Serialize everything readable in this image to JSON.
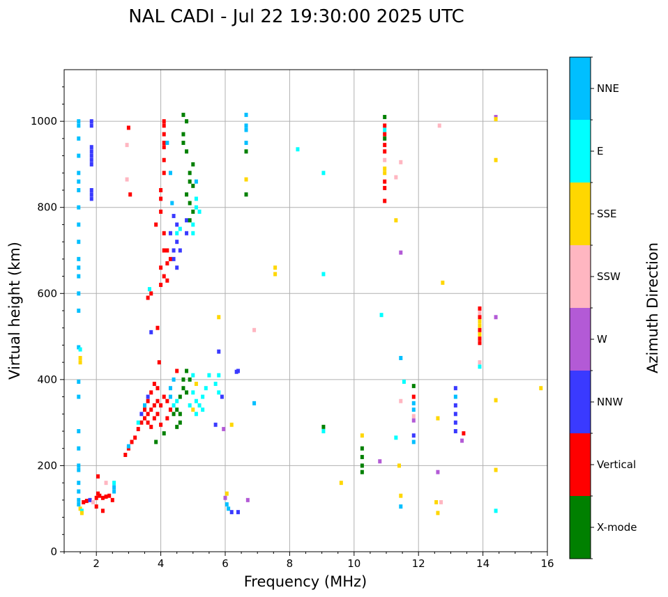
{
  "chart_data": {
    "type": "scatter",
    "title": "NAL CADI - Jul 22 19:30:00 2025 UTC",
    "xlabel": "Frequency (MHz)",
    "ylabel": "Virtual height (km)",
    "xlim": [
      1,
      16
    ],
    "ylim": [
      0,
      1120
    ],
    "xticks": [
      2,
      4,
      6,
      8,
      10,
      12,
      14,
      16
    ],
    "yticks": [
      0,
      200,
      400,
      600,
      800,
      1000
    ],
    "grid": true,
    "colorbar": {
      "label": "Azimuth Direction",
      "categories": [
        {
          "name": "X-mode",
          "color": "#008000"
        },
        {
          "name": "Vertical",
          "color": "#ff0000"
        },
        {
          "name": "NNW",
          "color": "#3a3aff"
        },
        {
          "name": "W",
          "color": "#b35ad6"
        },
        {
          "name": "SSW",
          "color": "#ffb6c1"
        },
        {
          "name": "SSE",
          "color": "#ffd700"
        },
        {
          "name": "E",
          "color": "#00ffff"
        },
        {
          "name": "NNE",
          "color": "#00bfff"
        }
      ]
    },
    "points_format": "[frequency_MHz, virtual_height_km, category]",
    "points": [
      [
        1.45,
        1000,
        "NNE"
      ],
      [
        1.45,
        990,
        "NNE"
      ],
      [
        1.45,
        960,
        "NNE"
      ],
      [
        1.45,
        920,
        "NNE"
      ],
      [
        1.45,
        880,
        "NNE"
      ],
      [
        1.45,
        860,
        "NNE"
      ],
      [
        1.45,
        840,
        "NNE"
      ],
      [
        1.45,
        800,
        "NNE"
      ],
      [
        1.45,
        760,
        "NNE"
      ],
      [
        1.45,
        720,
        "NNE"
      ],
      [
        1.45,
        680,
        "NNE"
      ],
      [
        1.45,
        660,
        "NNE"
      ],
      [
        1.45,
        640,
        "NNE"
      ],
      [
        1.45,
        600,
        "NNE"
      ],
      [
        1.45,
        560,
        "NNE"
      ],
      [
        1.45,
        475,
        "NNE"
      ],
      [
        1.5,
        470,
        "E"
      ],
      [
        1.5,
        450,
        "SSE"
      ],
      [
        1.5,
        440,
        "SSE"
      ],
      [
        1.45,
        395,
        "NNE"
      ],
      [
        1.45,
        360,
        "NNE"
      ],
      [
        1.45,
        280,
        "NNE"
      ],
      [
        1.45,
        240,
        "NNE"
      ],
      [
        1.45,
        200,
        "NNE"
      ],
      [
        1.45,
        190,
        "NNE"
      ],
      [
        1.45,
        160,
        "NNE"
      ],
      [
        1.45,
        140,
        "NNE"
      ],
      [
        1.45,
        120,
        "NNE"
      ],
      [
        1.45,
        110,
        "NNE"
      ],
      [
        1.5,
        100,
        "SSE"
      ],
      [
        1.55,
        95,
        "E"
      ],
      [
        1.55,
        90,
        "SSE"
      ],
      [
        1.85,
        1000,
        "NNW"
      ],
      [
        1.85,
        990,
        "NNW"
      ],
      [
        1.85,
        940,
        "NNW"
      ],
      [
        1.85,
        930,
        "NNW"
      ],
      [
        1.85,
        920,
        "NNW"
      ],
      [
        1.85,
        910,
        "NNW"
      ],
      [
        1.85,
        900,
        "NNW"
      ],
      [
        1.85,
        840,
        "NNW"
      ],
      [
        1.85,
        830,
        "NNW"
      ],
      [
        1.85,
        820,
        "NNW"
      ],
      [
        1.6,
        115,
        "Vertical"
      ],
      [
        1.7,
        118,
        "Vertical"
      ],
      [
        1.8,
        120,
        "NNW"
      ],
      [
        1.9,
        115,
        "SSW"
      ],
      [
        2.0,
        125,
        "Vertical"
      ],
      [
        2.05,
        135,
        "Vertical"
      ],
      [
        2.05,
        175,
        "Vertical"
      ],
      [
        2.1,
        130,
        "Vertical"
      ],
      [
        2.2,
        125,
        "Vertical"
      ],
      [
        2.3,
        128,
        "Vertical"
      ],
      [
        2.4,
        130,
        "Vertical"
      ],
      [
        2.5,
        120,
        "Vertical"
      ],
      [
        2.55,
        150,
        "NNE"
      ],
      [
        2.55,
        160,
        "E"
      ],
      [
        2.55,
        140,
        "NNE"
      ],
      [
        2.2,
        95,
        "Vertical"
      ],
      [
        2.0,
        105,
        "Vertical"
      ],
      [
        2.3,
        160,
        "SSW"
      ],
      [
        3.0,
        985,
        "Vertical"
      ],
      [
        2.95,
        945,
        "SSW"
      ],
      [
        2.95,
        865,
        "SSW"
      ],
      [
        3.05,
        830,
        "Vertical"
      ],
      [
        2.9,
        225,
        "Vertical"
      ],
      [
        3.0,
        240,
        "Vertical"
      ],
      [
        3.1,
        255,
        "Vertical"
      ],
      [
        3.2,
        265,
        "Vertical"
      ],
      [
        3.3,
        285,
        "Vertical"
      ],
      [
        3.4,
        300,
        "Vertical"
      ],
      [
        3.5,
        310,
        "Vertical"
      ],
      [
        3.6,
        320,
        "Vertical"
      ],
      [
        3.7,
        330,
        "Vertical"
      ],
      [
        3.8,
        340,
        "Vertical"
      ],
      [
        3.9,
        350,
        "Vertical"
      ],
      [
        3.5,
        330,
        "Vertical"
      ],
      [
        3.6,
        350,
        "Vertical"
      ],
      [
        3.7,
        370,
        "Vertical"
      ],
      [
        3.8,
        390,
        "Vertical"
      ],
      [
        3.6,
        300,
        "Vertical"
      ],
      [
        3.7,
        290,
        "Vertical"
      ],
      [
        3.8,
        310,
        "Vertical"
      ],
      [
        3.9,
        320,
        "Vertical"
      ],
      [
        3.85,
        255,
        "X-mode"
      ],
      [
        4.1,
        275,
        "X-mode"
      ],
      [
        4.0,
        295,
        "Vertical"
      ],
      [
        4.2,
        310,
        "Vertical"
      ],
      [
        4.3,
        330,
        "Vertical"
      ],
      [
        4.0,
        340,
        "Vertical"
      ],
      [
        3.95,
        440,
        "Vertical"
      ],
      [
        3.9,
        380,
        "Vertical"
      ],
      [
        4.1,
        360,
        "Vertical"
      ],
      [
        3.4,
        320,
        "NNW"
      ],
      [
        3.5,
        340,
        "NNE"
      ],
      [
        3.6,
        360,
        "NNW"
      ],
      [
        3.3,
        300,
        "E"
      ],
      [
        3.0,
        245,
        "NNE"
      ],
      [
        4.1,
        1000,
        "Vertical"
      ],
      [
        4.1,
        990,
        "Vertical"
      ],
      [
        4.1,
        970,
        "Vertical"
      ],
      [
        4.1,
        950,
        "Vertical"
      ],
      [
        4.1,
        940,
        "Vertical"
      ],
      [
        4.1,
        910,
        "Vertical"
      ],
      [
        4.1,
        880,
        "Vertical"
      ],
      [
        4.0,
        840,
        "Vertical"
      ],
      [
        4.0,
        820,
        "Vertical"
      ],
      [
        4.0,
        790,
        "Vertical"
      ],
      [
        3.85,
        760,
        "Vertical"
      ],
      [
        4.1,
        740,
        "Vertical"
      ],
      [
        4.2,
        700,
        "Vertical"
      ],
      [
        4.0,
        660,
        "Vertical"
      ],
      [
        4.1,
        640,
        "Vertical"
      ],
      [
        4.0,
        620,
        "Vertical"
      ],
      [
        3.7,
        600,
        "Vertical"
      ],
      [
        4.2,
        630,
        "Vertical"
      ],
      [
        4.3,
        680,
        "Vertical"
      ],
      [
        4.1,
        700,
        "Vertical"
      ],
      [
        3.9,
        520,
        "Vertical"
      ],
      [
        3.6,
        590,
        "Vertical"
      ],
      [
        4.2,
        670,
        "Vertical"
      ],
      [
        4.4,
        780,
        "NNW"
      ],
      [
        4.5,
        760,
        "NNW"
      ],
      [
        4.5,
        720,
        "NNW"
      ],
      [
        4.4,
        700,
        "NNW"
      ],
      [
        4.4,
        680,
        "NNW"
      ],
      [
        4.5,
        660,
        "NNW"
      ],
      [
        4.3,
        740,
        "NNW"
      ],
      [
        4.6,
        700,
        "NNW"
      ],
      [
        4.8,
        770,
        "NNW"
      ],
      [
        4.8,
        740,
        "NNW"
      ],
      [
        3.7,
        510,
        "NNW"
      ],
      [
        4.2,
        950,
        "NNE"
      ],
      [
        4.3,
        880,
        "NNE"
      ],
      [
        4.35,
        810,
        "NNE"
      ],
      [
        4.5,
        740,
        "E"
      ],
      [
        4.6,
        750,
        "E"
      ],
      [
        3.65,
        610,
        "E"
      ],
      [
        4.7,
        1015,
        "X-mode"
      ],
      [
        4.7,
        970,
        "X-mode"
      ],
      [
        4.7,
        950,
        "X-mode"
      ],
      [
        4.8,
        930,
        "X-mode"
      ],
      [
        4.9,
        880,
        "X-mode"
      ],
      [
        4.9,
        860,
        "X-mode"
      ],
      [
        5.0,
        900,
        "X-mode"
      ],
      [
        5.0,
        850,
        "X-mode"
      ],
      [
        4.9,
        810,
        "X-mode"
      ],
      [
        4.9,
        770,
        "X-mode"
      ],
      [
        5.0,
        790,
        "X-mode"
      ],
      [
        4.8,
        830,
        "X-mode"
      ],
      [
        4.8,
        1000,
        "X-mode"
      ],
      [
        5.1,
        860,
        "NNE"
      ],
      [
        5.1,
        820,
        "E"
      ],
      [
        5.1,
        800,
        "E"
      ],
      [
        5.2,
        790,
        "E"
      ],
      [
        5.0,
        760,
        "E"
      ],
      [
        5.0,
        740,
        "E"
      ],
      [
        4.3,
        380,
        "NNE"
      ],
      [
        4.3,
        360,
        "NNE"
      ],
      [
        4.4,
        340,
        "E"
      ],
      [
        4.5,
        350,
        "E"
      ],
      [
        4.6,
        360,
        "X-mode"
      ],
      [
        4.7,
        380,
        "X-mode"
      ],
      [
        4.8,
        370,
        "X-mode"
      ],
      [
        4.5,
        330,
        "X-mode"
      ],
      [
        4.6,
        320,
        "X-mode"
      ],
      [
        4.4,
        320,
        "X-mode"
      ],
      [
        4.7,
        400,
        "X-mode"
      ],
      [
        4.8,
        420,
        "X-mode"
      ],
      [
        4.9,
        400,
        "X-mode"
      ],
      [
        5.0,
        410,
        "E"
      ],
      [
        5.1,
        390,
        "SSE"
      ],
      [
        5.0,
        370,
        "E"
      ],
      [
        5.1,
        350,
        "E"
      ],
      [
        5.2,
        340,
        "E"
      ],
      [
        5.3,
        360,
        "E"
      ],
      [
        5.4,
        380,
        "E"
      ],
      [
        5.5,
        410,
        "E"
      ],
      [
        5.3,
        330,
        "E"
      ],
      [
        4.9,
        340,
        "E"
      ],
      [
        4.6,
        300,
        "X-mode"
      ],
      [
        4.5,
        290,
        "X-mode"
      ],
      [
        4.3,
        330,
        "Vertical"
      ],
      [
        4.2,
        350,
        "Vertical"
      ],
      [
        4.5,
        420,
        "Vertical"
      ],
      [
        4.4,
        400,
        "NNE"
      ],
      [
        5.0,
        330,
        "SSE"
      ],
      [
        5.1,
        320,
        "E"
      ],
      [
        5.8,
        410,
        "E"
      ],
      [
        5.7,
        390,
        "E"
      ],
      [
        5.9,
        360,
        "NNW"
      ],
      [
        5.8,
        370,
        "E"
      ],
      [
        6.65,
        1015,
        "NNE"
      ],
      [
        6.65,
        990,
        "NNE"
      ],
      [
        6.65,
        980,
        "NNE"
      ],
      [
        6.65,
        950,
        "NNE"
      ],
      [
        6.65,
        930,
        "X-mode"
      ],
      [
        6.65,
        865,
        "SSE"
      ],
      [
        6.65,
        830,
        "X-mode"
      ],
      [
        5.8,
        545,
        "SSE"
      ],
      [
        5.8,
        465,
        "NNW"
      ],
      [
        6.9,
        515,
        "SSW"
      ],
      [
        6.35,
        418,
        "NNW"
      ],
      [
        6.4,
        420,
        "NNW"
      ],
      [
        6.9,
        345,
        "NNE"
      ],
      [
        6.2,
        295,
        "SSE"
      ],
      [
        5.95,
        285,
        "W"
      ],
      [
        6.0,
        125,
        "W"
      ],
      [
        6.05,
        135,
        "SSE"
      ],
      [
        6.05,
        110,
        "NNE"
      ],
      [
        6.1,
        100,
        "NNE"
      ],
      [
        6.2,
        92,
        "NNW"
      ],
      [
        6.4,
        92,
        "NNW"
      ],
      [
        6.7,
        120,
        "W"
      ],
      [
        5.7,
        295,
        "NNW"
      ],
      [
        7.55,
        660,
        "SSE"
      ],
      [
        7.55,
        645,
        "SSE"
      ],
      [
        8.25,
        935,
        "E"
      ],
      [
        9.05,
        880,
        "E"
      ],
      [
        9.05,
        645,
        "E"
      ],
      [
        9.05,
        290,
        "X-mode"
      ],
      [
        9.05,
        280,
        "E"
      ],
      [
        9.6,
        160,
        "SSE"
      ],
      [
        10.25,
        270,
        "SSE"
      ],
      [
        10.25,
        240,
        "X-mode"
      ],
      [
        10.25,
        220,
        "X-mode"
      ],
      [
        10.25,
        200,
        "X-mode"
      ],
      [
        10.25,
        185,
        "X-mode"
      ],
      [
        10.85,
        550,
        "E"
      ],
      [
        10.8,
        210,
        "W"
      ],
      [
        10.95,
        1010,
        "X-mode"
      ],
      [
        10.95,
        990,
        "Vertical"
      ],
      [
        10.95,
        980,
        "E"
      ],
      [
        10.95,
        970,
        "Vertical"
      ],
      [
        10.95,
        960,
        "X-mode"
      ],
      [
        10.95,
        945,
        "Vertical"
      ],
      [
        10.95,
        930,
        "Vertical"
      ],
      [
        10.95,
        910,
        "SSW"
      ],
      [
        10.95,
        890,
        "SSE"
      ],
      [
        10.95,
        880,
        "SSE"
      ],
      [
        10.95,
        860,
        "Vertical"
      ],
      [
        10.95,
        845,
        "Vertical"
      ],
      [
        10.95,
        815,
        "Vertical"
      ],
      [
        11.3,
        870,
        "SSW"
      ],
      [
        11.45,
        905,
        "SSW"
      ],
      [
        11.3,
        770,
        "SSE"
      ],
      [
        11.45,
        695,
        "W"
      ],
      [
        11.45,
        450,
        "NNE"
      ],
      [
        11.55,
        395,
        "E"
      ],
      [
        11.45,
        350,
        "SSW"
      ],
      [
        11.3,
        265,
        "E"
      ],
      [
        11.4,
        200,
        "SSE"
      ],
      [
        11.45,
        130,
        "SSE"
      ],
      [
        11.45,
        105,
        "NNE"
      ],
      [
        11.85,
        385,
        "X-mode"
      ],
      [
        11.85,
        360,
        "Vertical"
      ],
      [
        11.85,
        345,
        "NNE"
      ],
      [
        11.85,
        330,
        "NNE"
      ],
      [
        11.85,
        315,
        "SSW"
      ],
      [
        11.85,
        305,
        "W"
      ],
      [
        11.85,
        270,
        "NNW"
      ],
      [
        11.85,
        255,
        "NNE"
      ],
      [
        12.65,
        990,
        "SSW"
      ],
      [
        12.75,
        625,
        "SSE"
      ],
      [
        12.6,
        310,
        "SSE"
      ],
      [
        12.6,
        185,
        "W"
      ],
      [
        12.55,
        115,
        "SSE"
      ],
      [
        12.7,
        115,
        "SSW"
      ],
      [
        12.6,
        90,
        "SSE"
      ],
      [
        13.15,
        380,
        "NNW"
      ],
      [
        13.15,
        360,
        "NNE"
      ],
      [
        13.15,
        340,
        "NNW"
      ],
      [
        13.15,
        320,
        "NNW"
      ],
      [
        13.15,
        300,
        "NNW"
      ],
      [
        13.15,
        280,
        "NNW"
      ],
      [
        13.4,
        275,
        "Vertical"
      ],
      [
        13.35,
        258,
        "W"
      ],
      [
        13.9,
        565,
        "Vertical"
      ],
      [
        13.9,
        555,
        "SSW"
      ],
      [
        13.9,
        545,
        "Vertical"
      ],
      [
        13.9,
        535,
        "SSE"
      ],
      [
        13.9,
        525,
        "SSE"
      ],
      [
        13.9,
        515,
        "Vertical"
      ],
      [
        13.9,
        505,
        "SSE"
      ],
      [
        13.9,
        495,
        "Vertical"
      ],
      [
        13.9,
        485,
        "Vertical"
      ],
      [
        13.9,
        440,
        "SSW"
      ],
      [
        13.9,
        430,
        "E"
      ],
      [
        14.4,
        1010,
        "W"
      ],
      [
        14.4,
        1005,
        "SSE"
      ],
      [
        14.4,
        910,
        "SSE"
      ],
      [
        14.4,
        545,
        "W"
      ],
      [
        14.4,
        352,
        "SSE"
      ],
      [
        14.4,
        190,
        "SSE"
      ],
      [
        14.4,
        95,
        "E"
      ],
      [
        15.8,
        380,
        "SSE"
      ]
    ]
  }
}
